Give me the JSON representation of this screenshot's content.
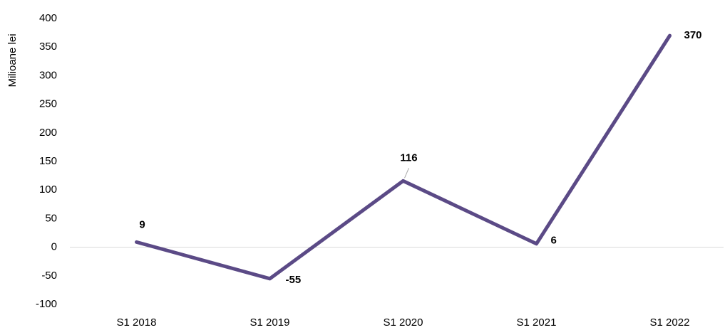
{
  "chart_data": {
    "type": "line",
    "y_label": "Milioane lei",
    "categories": [
      "S1 2018",
      "S1 2019",
      "S1 2020",
      "S1 2021",
      "S1 2022"
    ],
    "series": [
      {
        "name": null,
        "color": "#5b4a86",
        "values": [
          9,
          -55,
          116,
          6,
          370
        ]
      }
    ],
    "ylim": [
      -100,
      400
    ],
    "yticks": [
      -100,
      -50,
      0,
      50,
      100,
      150,
      200,
      250,
      300,
      350,
      400
    ],
    "grid": false
  }
}
